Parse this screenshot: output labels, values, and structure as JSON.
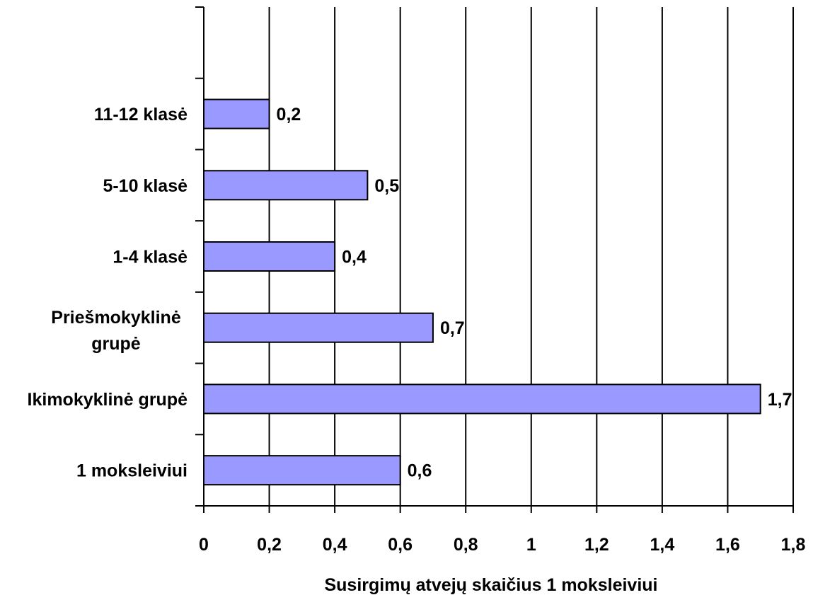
{
  "chart_data": {
    "type": "bar",
    "orientation": "horizontal",
    "categories": [
      "1 moksleiviui",
      "Ikimokyklinė grupė",
      "Priešmokyklinė grupė",
      "1-4 klasė",
      "5-10 klasė",
      "11-12 klasė"
    ],
    "values": [
      0.6,
      1.7,
      0.7,
      0.4,
      0.5,
      0.2
    ],
    "data_labels": [
      "0,6",
      "1,7",
      "0,7",
      "0,4",
      "0,5",
      "0,2"
    ],
    "xlim": [
      0,
      1.8
    ],
    "x_ticks": [
      0,
      0.2,
      0.4,
      0.6,
      0.8,
      1,
      1.2,
      1.4,
      1.6,
      1.8
    ],
    "x_tick_labels": [
      "0",
      "0,2",
      "0,4",
      "0,6",
      "0,8",
      "1",
      "1,2",
      "1,4",
      "1,6",
      "1,8"
    ],
    "xlabel": "Susirgimų atvejų skaičius 1 moksleiviui",
    "ylabel": "",
    "title": "",
    "grid": "vertical",
    "legend": "none",
    "bar_color": "#9999ff",
    "bar_border_color": "#000000"
  }
}
